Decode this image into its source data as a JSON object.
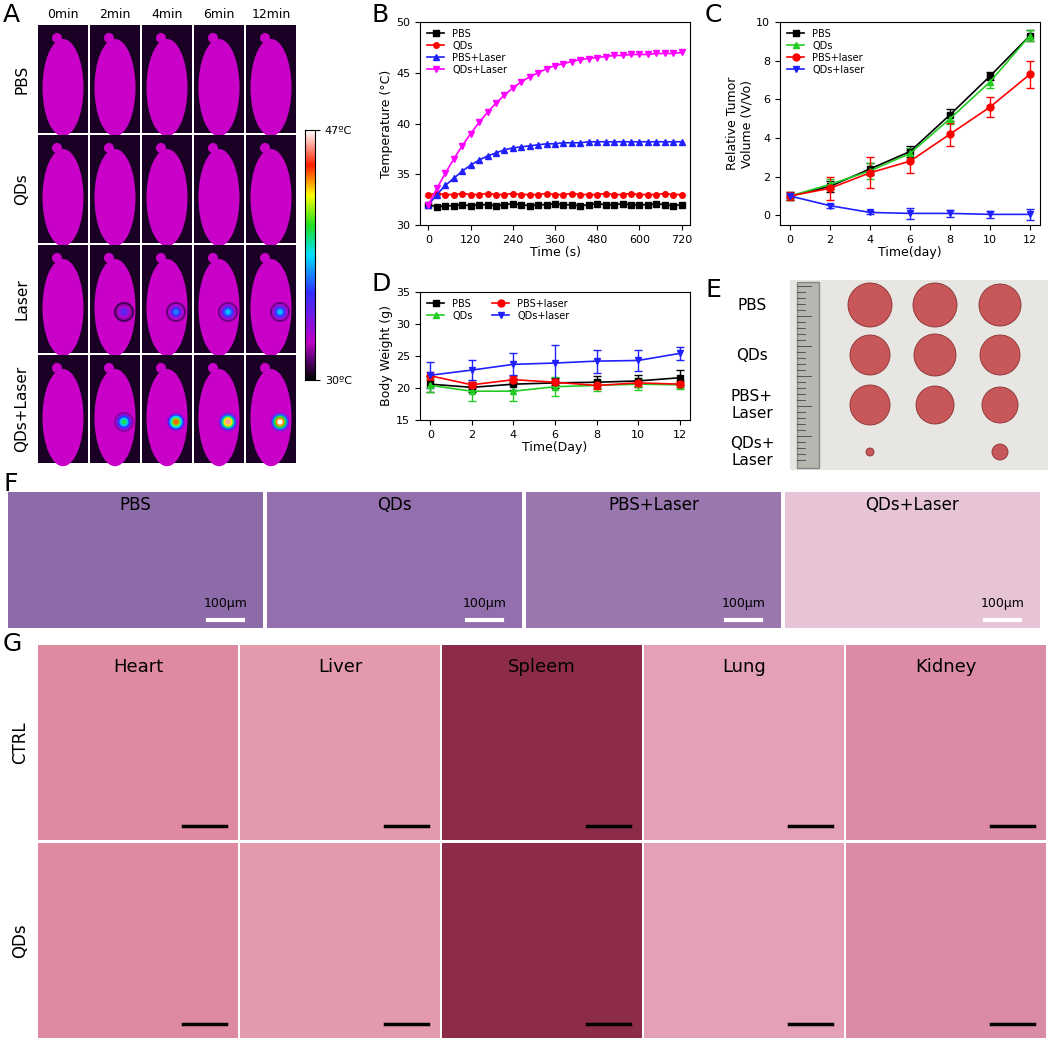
{
  "panel_labels": [
    "A",
    "B",
    "C",
    "D",
    "E",
    "F",
    "G"
  ],
  "panels": {
    "A": {
      "times": [
        "0min",
        "2min",
        "4min",
        "6min",
        "12min"
      ],
      "rows": [
        "PBS",
        "QDs",
        "Laser",
        "QDs+Laser"
      ],
      "spot_temperature": [
        [
          null,
          null,
          null,
          null,
          null
        ],
        [
          null,
          null,
          null,
          null,
          null
        ],
        [
          null,
          35,
          37,
          38,
          38
        ],
        [
          null,
          40,
          44,
          46,
          47
        ]
      ],
      "colorbar": {
        "range": [
          30,
          47
        ],
        "ticks": [
          {
            "value": 30,
            "label": "30ºC"
          },
          {
            "value": 47,
            "label": "47ºC"
          }
        ]
      }
    },
    "E": {
      "rows": [
        "PBS",
        "QDs",
        "PBS+\nLaser",
        "QDs+\nLaser"
      ]
    },
    "F": {
      "panels": [
        "PBS",
        "QDs",
        "PBS+Laser",
        "QDs+Laser"
      ],
      "scale_bar": "100μm"
    },
    "G": {
      "rows": [
        "CTRL",
        "QDs"
      ],
      "columns": [
        "Heart",
        "Liver",
        "Spleem",
        "Lung",
        "Kidney"
      ]
    }
  },
  "chart_data": [
    {
      "type": "line",
      "panel": "B",
      "x_label": "Time (s)",
      "y_label": "Temperature (°C)",
      "xlim": [
        -24,
        744
      ],
      "xticks": [
        0,
        120,
        240,
        360,
        480,
        600,
        720
      ],
      "ylim": [
        30,
        50
      ],
      "yticks": [
        30,
        35,
        40,
        45,
        50
      ],
      "legend": "upper left",
      "x": [
        0,
        24,
        48,
        72,
        96,
        120,
        144,
        168,
        192,
        216,
        240,
        264,
        288,
        312,
        336,
        360,
        384,
        408,
        432,
        456,
        480,
        504,
        528,
        552,
        576,
        600,
        624,
        648,
        672,
        696,
        720
      ],
      "series": [
        {
          "name": "PBS",
          "color": "#000000",
          "marker": "square",
          "values": [
            32.0,
            31.8,
            31.9,
            31.9,
            32.0,
            31.9,
            32.0,
            32.0,
            31.9,
            32.0,
            32.1,
            32.0,
            31.9,
            32.0,
            32.0,
            32.1,
            32.0,
            32.0,
            31.9,
            32.0,
            32.1,
            32.0,
            32.0,
            32.1,
            32.0,
            32.0,
            32.0,
            32.1,
            32.0,
            31.9,
            32.0
          ]
        },
        {
          "name": "QDs",
          "color": "#ff0000",
          "marker": "circle",
          "values": [
            33.0,
            33.1,
            33.0,
            33.0,
            33.1,
            33.0,
            33.0,
            33.1,
            33.0,
            33.0,
            33.1,
            33.0,
            33.0,
            33.0,
            33.1,
            33.0,
            33.0,
            33.1,
            33.0,
            33.0,
            33.0,
            33.1,
            33.0,
            33.0,
            33.1,
            33.0,
            33.0,
            33.0,
            33.1,
            33.0,
            33.0
          ]
        },
        {
          "name": "PBS+Laser",
          "color": "#2020ff",
          "marker": "triangle_up",
          "values": [
            32.0,
            33.0,
            33.9,
            34.6,
            35.3,
            35.9,
            36.4,
            36.8,
            37.1,
            37.4,
            37.6,
            37.7,
            37.8,
            37.9,
            38.0,
            38.0,
            38.1,
            38.1,
            38.1,
            38.2,
            38.2,
            38.2,
            38.2,
            38.2,
            38.2,
            38.2,
            38.2,
            38.2,
            38.2,
            38.2,
            38.2
          ]
        },
        {
          "name": "QDs+Laser",
          "color": "#ff00ff",
          "marker": "triangle_down",
          "values": [
            32.0,
            33.6,
            35.1,
            36.5,
            37.8,
            39.0,
            40.1,
            41.1,
            42.0,
            42.8,
            43.5,
            44.1,
            44.6,
            45.0,
            45.4,
            45.7,
            45.9,
            46.1,
            46.3,
            46.4,
            46.5,
            46.6,
            46.7,
            46.7,
            46.8,
            46.8,
            46.8,
            46.9,
            46.9,
            46.9,
            47.0
          ]
        }
      ]
    },
    {
      "type": "line",
      "panel": "C",
      "x_label": "Time(day)",
      "y_label": "Relative Tumor\nVolume (V/Vo)",
      "xlim": [
        -0.5,
        12.5
      ],
      "xticks": [
        0,
        2,
        4,
        6,
        8,
        10,
        12
      ],
      "ylim": [
        -0.5,
        10
      ],
      "yticks": [
        0,
        2,
        4,
        6,
        8,
        10
      ],
      "legend": "upper left",
      "x": [
        0,
        2,
        4,
        6,
        8,
        10,
        12
      ],
      "series": [
        {
          "name": "PBS",
          "color": "#000000",
          "marker": "square",
          "values": [
            1.0,
            1.5,
            2.4,
            3.3,
            5.2,
            7.2,
            9.3
          ],
          "errors": [
            0.2,
            0.3,
            0.3,
            0.3,
            0.3,
            0.2,
            0.3
          ]
        },
        {
          "name": "QDs",
          "color": "#22cc22",
          "marker": "triangle_up",
          "values": [
            1.0,
            1.6,
            2.3,
            3.2,
            5.0,
            6.9,
            9.3
          ],
          "errors": [
            0.2,
            0.3,
            0.4,
            0.3,
            0.3,
            0.3,
            0.3
          ]
        },
        {
          "name": "PBS+laser",
          "color": "#ff0000",
          "marker": "circle",
          "values": [
            1.0,
            1.4,
            2.2,
            2.8,
            4.2,
            5.6,
            7.3
          ],
          "errors": [
            0.2,
            0.6,
            0.8,
            0.6,
            0.6,
            0.5,
            0.7
          ]
        },
        {
          "name": "QDs+laser",
          "color": "#2020ff",
          "marker": "triangle_down",
          "values": [
            1.0,
            0.5,
            0.15,
            0.1,
            0.1,
            0.05,
            0.05
          ],
          "errors": [
            0.1,
            0.1,
            0.1,
            0.3,
            0.2,
            0.2,
            0.3
          ]
        }
      ]
    },
    {
      "type": "line",
      "panel": "D",
      "x_label": "Time(Day)",
      "y_label": "Body Weight (g)",
      "xlim": [
        -0.5,
        12.5
      ],
      "xticks": [
        0,
        2,
        4,
        6,
        8,
        10,
        12
      ],
      "ylim": [
        15,
        35
      ],
      "yticks": [
        15,
        20,
        25,
        30,
        35
      ],
      "legend": "upper left",
      "x": [
        0,
        2,
        4,
        6,
        8,
        10,
        12
      ],
      "series": [
        {
          "name": "PBS",
          "color": "#000000",
          "marker": "square",
          "values": [
            20.6,
            20.1,
            20.6,
            20.8,
            20.9,
            21.1,
            21.6
          ],
          "errors": [
            1.2,
            0.8,
            0.9,
            0.8,
            0.9,
            0.9,
            1.2
          ]
        },
        {
          "name": "QDs",
          "color": "#22cc22",
          "marker": "triangle_up",
          "values": [
            20.4,
            19.5,
            19.5,
            20.2,
            20.4,
            20.6,
            20.5
          ],
          "errors": [
            1.0,
            1.5,
            1.5,
            1.5,
            0.8,
            0.9,
            0.6
          ]
        },
        {
          "name": "PBS+laser",
          "color": "#ff0000",
          "marker": "circle",
          "values": [
            21.9,
            20.5,
            21.3,
            20.9,
            20.4,
            20.8,
            20.6
          ],
          "errors": [
            0.6,
            0.5,
            0.5,
            0.5,
            0.5,
            0.5,
            0.4
          ]
        },
        {
          "name": "QDs+laser",
          "color": "#2020ff",
          "marker": "triangle_down",
          "values": [
            22.0,
            22.8,
            23.7,
            23.9,
            24.2,
            24.3,
            25.4
          ],
          "errors": [
            2.0,
            1.5,
            1.7,
            2.8,
            1.8,
            1.7,
            1.0
          ]
        }
      ]
    }
  ]
}
